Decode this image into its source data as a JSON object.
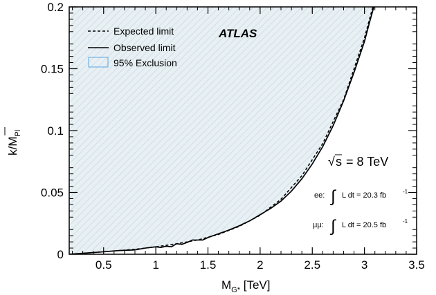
{
  "chart_data": {
    "type": "area",
    "xlabel_main": "M",
    "xlabel_sub": "G*",
    "xlabel_unit": " [TeV]",
    "ylabel_main": "k/",
    "ylabel_mass": "M",
    "ylabel_sub": "Pl",
    "xlim": [
      0.17,
      3.5
    ],
    "ylim": [
      0,
      0.2
    ],
    "x_ticks": [
      0.5,
      1,
      1.5,
      2,
      2.5,
      3,
      3.5
    ],
    "x_tick_labels": [
      "0.5",
      "1",
      "1.5",
      "2",
      "2.5",
      "3",
      "3.5"
    ],
    "y_ticks": [
      0,
      0.05,
      0.1,
      0.15,
      0.2
    ],
    "y_tick_labels": [
      "0",
      "0.05",
      "0.1",
      "0.15",
      "0.2"
    ],
    "legend_placement": "top-left",
    "grid": false,
    "series": [
      {
        "name": "Expected limit",
        "style": "dashed",
        "color": "#000000",
        "x": [
          0.17,
          0.5,
          0.8,
          1.0,
          1.2,
          1.4,
          1.6,
          1.8,
          2.0,
          2.2,
          2.4,
          2.6,
          2.8,
          3.0,
          3.08
        ],
        "y": [
          0.0,
          0.002,
          0.004,
          0.006,
          0.0085,
          0.0115,
          0.016,
          0.0225,
          0.0315,
          0.0445,
          0.0635,
          0.0895,
          0.125,
          0.175,
          0.2
        ]
      },
      {
        "name": "Observed limit",
        "style": "solid",
        "color": "#000000",
        "x": [
          0.17,
          0.3,
          0.5,
          0.65,
          0.8,
          0.9,
          1.0,
          1.05,
          1.1,
          1.15,
          1.2,
          1.25,
          1.3,
          1.35,
          1.4,
          1.45,
          1.5,
          1.6,
          1.7,
          1.8,
          1.9,
          2.0,
          2.1,
          2.2,
          2.3,
          2.4,
          2.5,
          2.6,
          2.7,
          2.8,
          2.9,
          3.0,
          3.05,
          3.09
        ],
        "y": [
          0.0,
          0.0008,
          0.002,
          0.003,
          0.0035,
          0.005,
          0.006,
          0.0055,
          0.0065,
          0.006,
          0.0085,
          0.008,
          0.0095,
          0.0115,
          0.0115,
          0.0115,
          0.0135,
          0.0165,
          0.0195,
          0.023,
          0.027,
          0.032,
          0.037,
          0.043,
          0.051,
          0.061,
          0.073,
          0.087,
          0.104,
          0.124,
          0.147,
          0.172,
          0.188,
          0.2
        ]
      }
    ],
    "exclusion": {
      "name": "95% Exclusion",
      "fill": "#e8f0f4",
      "hatch": "#c6d8e2",
      "border": "#5aa6e0",
      "x_max": 3.08
    }
  },
  "legend": {
    "expected": "Expected limit",
    "observed": "Observed limit",
    "exclusion": "95% Exclusion"
  },
  "labels": {
    "experiment": "ATLAS",
    "sqrt_symbol": "√",
    "energy_var": "s",
    "energy_value": " = 8 TeV",
    "ee_label": "ee:",
    "mumu_label": "μμ:",
    "integral_symbol": "∫",
    "ee_lumi_text": "L dt = 20.3 fb",
    "mumu_lumi_text": "L dt = 20.5 fb",
    "lumi_exponent": "-1"
  }
}
